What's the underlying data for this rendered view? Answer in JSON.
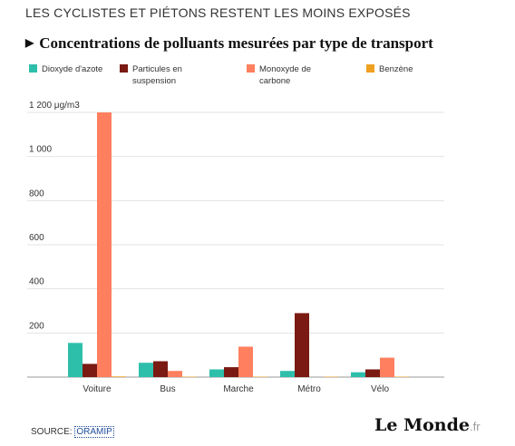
{
  "headline": "LES CYCLISTES ET PIÉTONS RESTENT LES MOINS EXPOSÉS",
  "subtitle": "Concentrations de polluants mesurées par type de transport",
  "source": {
    "label": "SOURCE:",
    "link": "ORAMIP"
  },
  "logo": {
    "main": "Le Monde",
    "suffix": ".fr"
  },
  "chart_data": {
    "type": "bar",
    "categories": [
      "Voiture",
      "Bus",
      "Marche",
      "Métro",
      "Vélo"
    ],
    "ylabel": "μg/m3",
    "ylim": [
      0,
      1200
    ],
    "yticks": [
      200,
      400,
      600,
      800,
      1000,
      1200
    ],
    "ytick_labels": [
      "200",
      "400",
      "600",
      "800",
      "1 000",
      "1 200 μg/m3"
    ],
    "grid": true,
    "legend_placement": "top",
    "series": [
      {
        "name": "Dioxyde d'azote",
        "color": "#2ebfab",
        "values": [
          155,
          65,
          35,
          28,
          22
        ]
      },
      {
        "name": "Particules en suspension",
        "color": "#7a1a12",
        "values": [
          60,
          72,
          45,
          290,
          35
        ]
      },
      {
        "name": "Monoxyde de carbone",
        "color": "#ff7f5e",
        "values": [
          1200,
          28,
          138,
          0,
          88
        ]
      },
      {
        "name": "Benzène",
        "color": "#f0a020",
        "values": [
          3,
          2,
          2,
          2,
          2
        ]
      }
    ]
  }
}
